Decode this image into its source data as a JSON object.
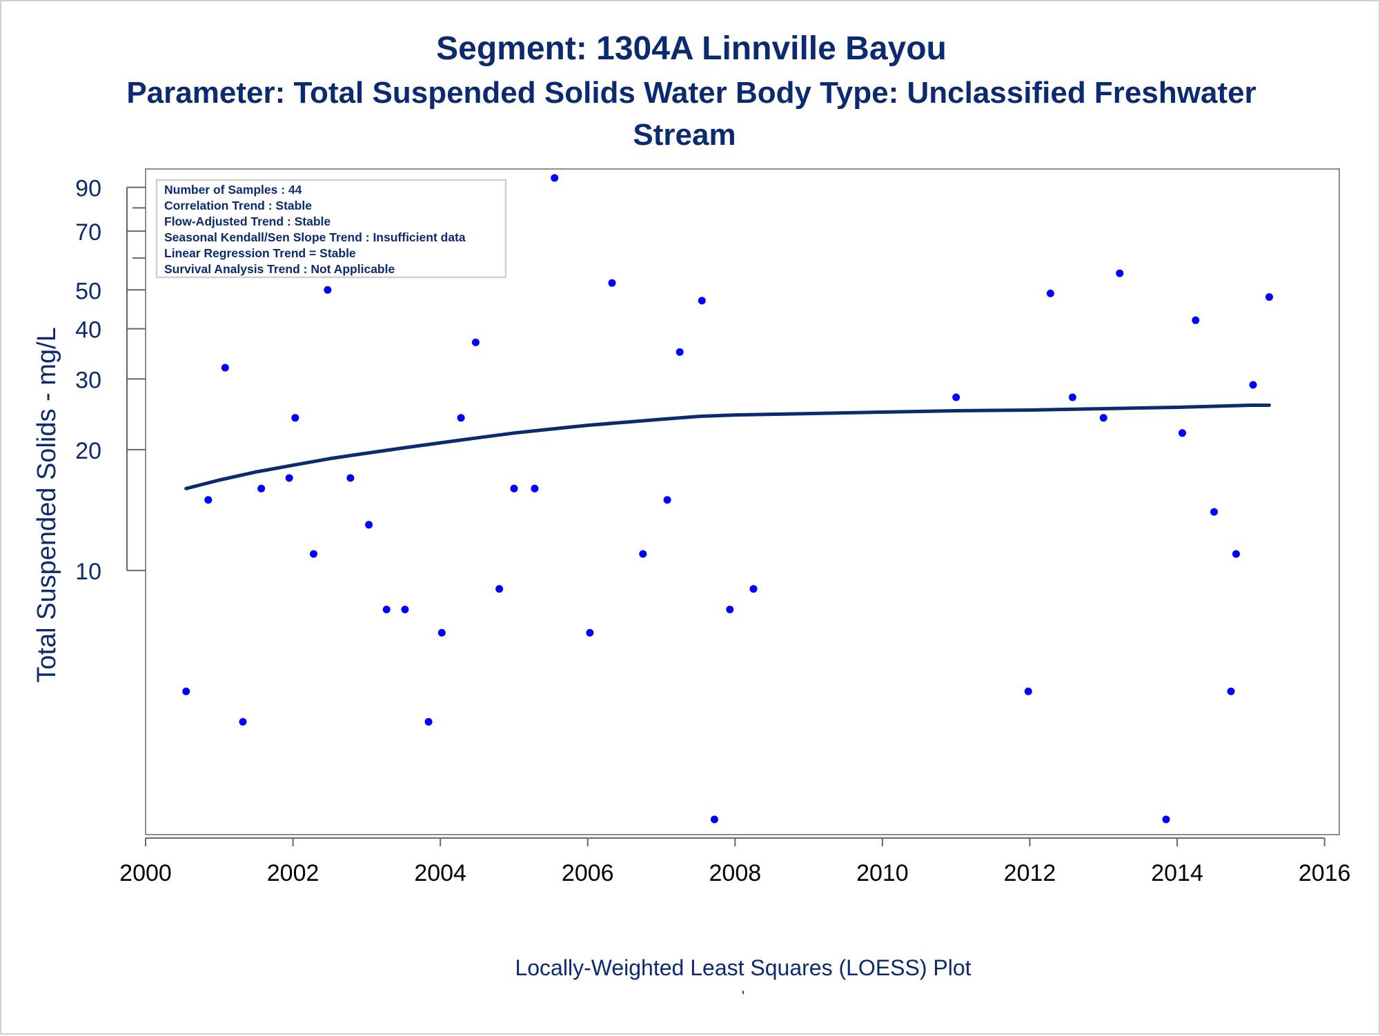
{
  "chart_data": {
    "type": "scatter",
    "title": "Segment: 1304A  Linnville Bayou",
    "subtitle_lines": [
      "Parameter: Total Suspended Solids   Water Body Type: Unclassified Freshwater",
      "Stream"
    ],
    "xlabel": "Locally-Weighted Least Squares (LOESS) Plot",
    "ylabel": "Total Suspended Solids - mg/L",
    "footnote_mark": "'",
    "y_scale": "log",
    "xlim": [
      2000,
      2016.2
    ],
    "ylim": [
      2.2,
      100
    ],
    "x_ticks": [
      2000,
      2002,
      2004,
      2006,
      2008,
      2010,
      2012,
      2014,
      2016
    ],
    "x_tick_labels": [
      "2000",
      "2002",
      "2004",
      "2006",
      "2008",
      "2010",
      "2012",
      "2014",
      "2016"
    ],
    "y_ticks": [
      10,
      20,
      30,
      40,
      50,
      70,
      90
    ],
    "y_tick_labels": [
      "10",
      "20",
      "30",
      "40",
      "50",
      "70",
      "90"
    ],
    "y_minor_ticks": [
      60,
      80
    ],
    "grid": false,
    "stats_box": {
      "placement": "top-left",
      "lines": [
        "Number of Samples : 44",
        "Correlation Trend : Stable",
        "Flow-Adjusted Trend : Stable",
        "Seasonal Kendall/Sen Slope Trend : Insufficient data",
        "Linear Regression Trend = Stable",
        "Survival Analysis Trend : Not Applicable"
      ]
    },
    "series": [
      {
        "kind": "points",
        "color": "#0000ff",
        "points": [
          [
            2000.55,
            5
          ],
          [
            2000.85,
            15
          ],
          [
            2001.08,
            32
          ],
          [
            2001.32,
            4.2
          ],
          [
            2001.57,
            16
          ],
          [
            2001.95,
            17
          ],
          [
            2002.03,
            24
          ],
          [
            2002.28,
            11
          ],
          [
            2002.47,
            50
          ],
          [
            2002.78,
            17
          ],
          [
            2003.03,
            13
          ],
          [
            2003.27,
            8
          ],
          [
            2003.52,
            8
          ],
          [
            2003.84,
            4.2
          ],
          [
            2004.02,
            7
          ],
          [
            2004.28,
            24
          ],
          [
            2004.48,
            37
          ],
          [
            2004.8,
            9
          ],
          [
            2005.0,
            16
          ],
          [
            2005.28,
            16
          ],
          [
            2005.55,
            95
          ],
          [
            2006.03,
            7
          ],
          [
            2006.33,
            52
          ],
          [
            2006.75,
            11
          ],
          [
            2007.08,
            15
          ],
          [
            2007.25,
            35
          ],
          [
            2007.55,
            47
          ],
          [
            2007.72,
            2.4
          ],
          [
            2007.93,
            8
          ],
          [
            2008.25,
            9
          ],
          [
            2011.0,
            27
          ],
          [
            2011.98,
            5
          ],
          [
            2012.28,
            49
          ],
          [
            2012.58,
            27
          ],
          [
            2013.0,
            24
          ],
          [
            2013.22,
            55
          ],
          [
            2013.85,
            2.4
          ],
          [
            2014.07,
            22
          ],
          [
            2014.25,
            42
          ],
          [
            2014.5,
            14
          ],
          [
            2014.73,
            5
          ],
          [
            2014.8,
            11
          ],
          [
            2015.03,
            29
          ],
          [
            2015.25,
            48
          ]
        ]
      },
      {
        "kind": "loess",
        "color": "#0b2a6f",
        "points": [
          [
            2000.55,
            16.0
          ],
          [
            2001.0,
            16.8
          ],
          [
            2001.5,
            17.6
          ],
          [
            2002.0,
            18.3
          ],
          [
            2002.5,
            19.0
          ],
          [
            2003.0,
            19.6
          ],
          [
            2003.5,
            20.2
          ],
          [
            2004.0,
            20.8
          ],
          [
            2004.5,
            21.4
          ],
          [
            2005.0,
            22.0
          ],
          [
            2005.5,
            22.5
          ],
          [
            2006.0,
            23.0
          ],
          [
            2006.5,
            23.4
          ],
          [
            2007.0,
            23.8
          ],
          [
            2007.5,
            24.2
          ],
          [
            2008.0,
            24.4
          ],
          [
            2009.0,
            24.6
          ],
          [
            2010.0,
            24.8
          ],
          [
            2011.0,
            25.0
          ],
          [
            2012.0,
            25.1
          ],
          [
            2013.0,
            25.3
          ],
          [
            2014.0,
            25.5
          ],
          [
            2015.0,
            25.8
          ],
          [
            2015.25,
            25.8
          ]
        ]
      }
    ]
  }
}
